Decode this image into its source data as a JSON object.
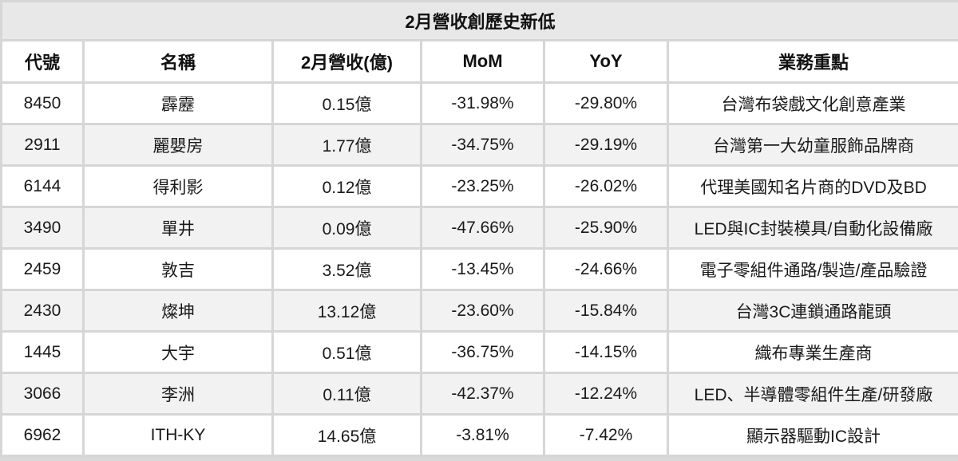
{
  "title": "2月營收創歷史新低",
  "headers": [
    "代號",
    "名稱",
    "2月營收(億)",
    "MoM",
    "YoY",
    "業務重點"
  ],
  "rows": [
    {
      "code": "8450",
      "name": "霹靂",
      "revenue": "0.15億",
      "mom": "-31.98%",
      "yoy": "-29.80%",
      "focus": "台灣布袋戲文化創意產業"
    },
    {
      "code": "2911",
      "name": "麗嬰房",
      "revenue": "1.77億",
      "mom": "-34.75%",
      "yoy": "-29.19%",
      "focus": "台灣第一大幼童服飾品牌商"
    },
    {
      "code": "6144",
      "name": "得利影",
      "revenue": "0.12億",
      "mom": "-23.25%",
      "yoy": "-26.02%",
      "focus": "代理美國知名片商的DVD及BD"
    },
    {
      "code": "3490",
      "name": "單井",
      "revenue": "0.09億",
      "mom": "-47.66%",
      "yoy": "-25.90%",
      "focus": "LED與IC封裝模具/自動化設備廠"
    },
    {
      "code": "2459",
      "name": "敦吉",
      "revenue": "3.52億",
      "mom": "-13.45%",
      "yoy": "-24.66%",
      "focus": "電子零組件通路/製造/產品驗證"
    },
    {
      "code": "2430",
      "name": "燦坤",
      "revenue": "13.12億",
      "mom": "-23.60%",
      "yoy": "-15.84%",
      "focus": "台灣3C連鎖通路龍頭"
    },
    {
      "code": "1445",
      "name": "大宇",
      "revenue": "0.51億",
      "mom": "-36.75%",
      "yoy": "-14.15%",
      "focus": "織布專業生產商"
    },
    {
      "code": "3066",
      "name": "李洲",
      "revenue": "0.11億",
      "mom": "-42.37%",
      "yoy": "-12.24%",
      "focus": "LED、半導體零組件生產/研發廠"
    },
    {
      "code": "6962",
      "name": "ITH-KY",
      "revenue": "14.65億",
      "mom": "-3.81%",
      "yoy": "-7.42%",
      "focus": "顯示器驅動IC設計"
    }
  ]
}
